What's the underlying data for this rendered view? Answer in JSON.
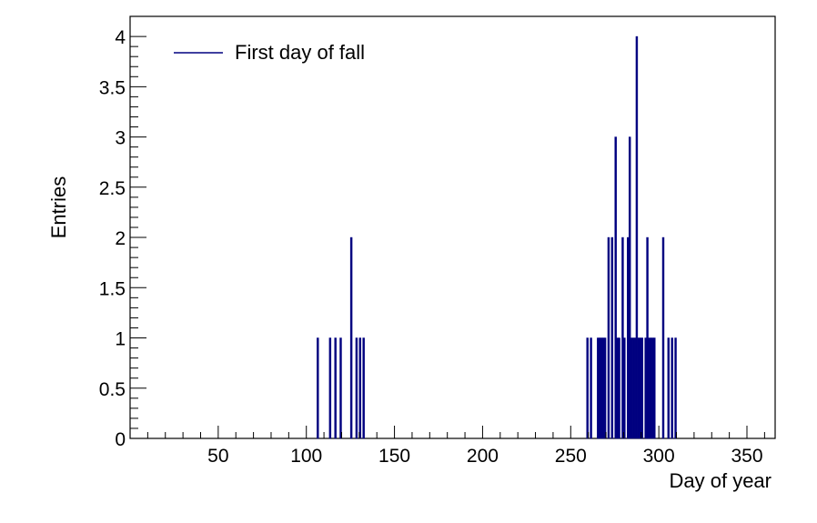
{
  "chart_data": {
    "type": "bar",
    "style": "histogram",
    "title": "",
    "xlabel": "Day of year",
    "ylabel": "Entries",
    "xlim": [
      0,
      366
    ],
    "ylim": [
      0,
      4.2
    ],
    "xticks": [
      50,
      100,
      150,
      200,
      250,
      300,
      350
    ],
    "yticks": [
      0,
      0.5,
      1,
      1.5,
      2,
      2.5,
      3,
      3.5,
      4
    ],
    "ytick_labels": [
      "0",
      "0.5",
      "1",
      "1.5",
      "2",
      "2.5",
      "3",
      "3.5",
      "4"
    ],
    "grid": false,
    "legend": {
      "position": "top-left"
    },
    "colors": {
      "series": "#000080"
    },
    "series": [
      {
        "name": "First day of fall",
        "points": [
          {
            "x": 106,
            "y": 1
          },
          {
            "x": 113,
            "y": 1
          },
          {
            "x": 116,
            "y": 1
          },
          {
            "x": 119,
            "y": 1
          },
          {
            "x": 125,
            "y": 2
          },
          {
            "x": 128,
            "y": 1
          },
          {
            "x": 130,
            "y": 1
          },
          {
            "x": 132,
            "y": 1
          },
          {
            "x": 259,
            "y": 1
          },
          {
            "x": 261,
            "y": 1
          },
          {
            "x": 265,
            "y": 1
          },
          {
            "x": 266,
            "y": 1
          },
          {
            "x": 267,
            "y": 1
          },
          {
            "x": 268,
            "y": 1
          },
          {
            "x": 269,
            "y": 1
          },
          {
            "x": 271,
            "y": 2
          },
          {
            "x": 273,
            "y": 2
          },
          {
            "x": 275,
            "y": 3
          },
          {
            "x": 276,
            "y": 1
          },
          {
            "x": 277,
            "y": 1
          },
          {
            "x": 279,
            "y": 2
          },
          {
            "x": 280,
            "y": 1
          },
          {
            "x": 282,
            "y": 2
          },
          {
            "x": 283,
            "y": 3
          },
          {
            "x": 284,
            "y": 1
          },
          {
            "x": 285,
            "y": 1
          },
          {
            "x": 286,
            "y": 1
          },
          {
            "x": 287,
            "y": 4
          },
          {
            "x": 288,
            "y": 1
          },
          {
            "x": 289,
            "y": 1
          },
          {
            "x": 290,
            "y": 1
          },
          {
            "x": 292,
            "y": 1
          },
          {
            "x": 293,
            "y": 2
          },
          {
            "x": 294,
            "y": 1
          },
          {
            "x": 295,
            "y": 1
          },
          {
            "x": 296,
            "y": 1
          },
          {
            "x": 297,
            "y": 1
          },
          {
            "x": 302,
            "y": 2
          },
          {
            "x": 305,
            "y": 1
          },
          {
            "x": 307,
            "y": 1
          },
          {
            "x": 309,
            "y": 1
          }
        ]
      }
    ]
  }
}
